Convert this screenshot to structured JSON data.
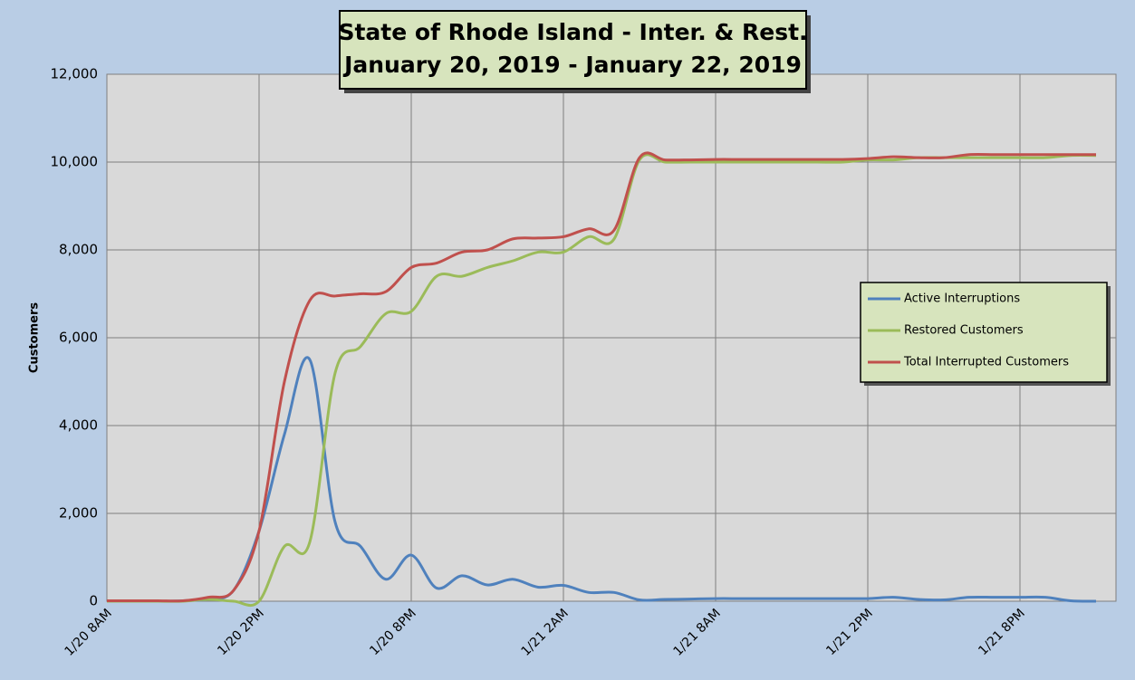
{
  "chart_data": {
    "type": "line",
    "title": [
      "State of Rhode Island - Inter. & Rest.",
      "January 20, 2019 - January 22, 2019"
    ],
    "y_label": "Customers",
    "categories": [
      "1/20 8AM",
      null,
      null,
      null,
      null,
      null,
      "1/20 2PM",
      null,
      null,
      null,
      null,
      null,
      "1/20 8PM",
      null,
      null,
      null,
      null,
      null,
      "1/21 2AM",
      null,
      null,
      null,
      null,
      null,
      "1/21 8AM",
      null,
      null,
      null,
      null,
      null,
      "1/21 2PM",
      null,
      null,
      null,
      null,
      null,
      "1/21 8PM",
      null,
      null,
      null
    ],
    "series": [
      {
        "name": "Active Interruptions",
        "color": "#4f81bd",
        "values": [
          0,
          0,
          0,
          10,
          50,
          250,
          1600,
          3800,
          5500,
          1800,
          1250,
          500,
          1050,
          300,
          580,
          370,
          500,
          320,
          360,
          200,
          200,
          30,
          40,
          50,
          60,
          60,
          60,
          60,
          60,
          60,
          60,
          90,
          40,
          30,
          90,
          90,
          90,
          90,
          10,
          0
        ]
      },
      {
        "name": "Restored Customers",
        "color": "#9bbb59",
        "values": [
          0,
          0,
          0,
          0,
          40,
          0,
          0,
          1250,
          1350,
          5200,
          5800,
          6550,
          6600,
          7400,
          7400,
          7600,
          7750,
          7950,
          7950,
          8300,
          8250,
          10050,
          10000,
          10000,
          10000,
          10000,
          10000,
          10000,
          10000,
          10000,
          10050,
          10050,
          10100,
          10100,
          10100,
          10100,
          10100,
          10100,
          10150,
          10150
        ]
      },
      {
        "name": "Total Interrupted Customers",
        "color": "#c0504d",
        "values": [
          10,
          10,
          10,
          10,
          90,
          250,
          1600,
          5000,
          6850,
          6950,
          7000,
          7050,
          7600,
          7700,
          7950,
          8000,
          8250,
          8270,
          8300,
          8480,
          8450,
          10100,
          10050,
          10050,
          10060,
          10060,
          10060,
          10060,
          10060,
          10060,
          10080,
          10120,
          10100,
          10100,
          10170,
          10170,
          10170,
          10170,
          10170,
          10170
        ]
      }
    ],
    "ylim": [
      0,
      12000
    ],
    "yticks": [
      0,
      {
        "value": 2000,
        "label": "2,000"
      },
      {
        "value": 4000,
        "label": "4,000"
      },
      {
        "value": 6000,
        "label": "6,000"
      },
      {
        "value": 8000,
        "label": "8,000"
      },
      {
        "value": 10000,
        "label": "10,000"
      },
      {
        "value": 12000,
        "label": "12,000"
      }
    ],
    "grid": true,
    "legend": "right"
  }
}
